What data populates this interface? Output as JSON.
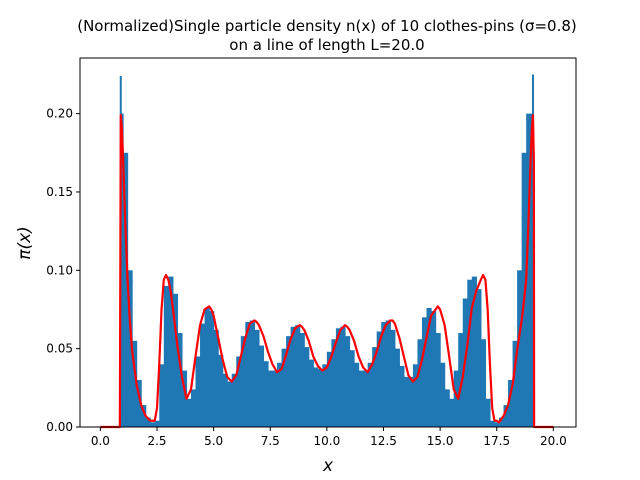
{
  "chart_data": {
    "type": "area",
    "title_line1": "(Normalized)Single particle density n(x) of 10 clothes-pins (σ=0.8)",
    "title_line2": "on a line of length L=20.0",
    "xlabel": "x",
    "ylabel": "π(x)",
    "xlim": [
      -0.9,
      21.0
    ],
    "ylim": [
      0.0,
      0.2355
    ],
    "xticks": [
      0.0,
      2.5,
      5.0,
      7.5,
      10.0,
      12.5,
      15.0,
      17.5,
      20.0
    ],
    "xtick_labels": [
      "0.0",
      "2.5",
      "5.0",
      "7.5",
      "10.0",
      "12.5",
      "15.0",
      "17.5",
      "20.0"
    ],
    "yticks": [
      0.0,
      0.05,
      0.1,
      0.15,
      0.2
    ],
    "ytick_labels": [
      "0.00",
      "0.05",
      "0.10",
      "0.15",
      "0.20"
    ],
    "grid": false,
    "series": [
      {
        "kind": "histogram",
        "color": "#1f77b4",
        "edge_spikes": [
          [
            0.9,
            0.224
          ],
          [
            19.1,
            0.225
          ]
        ],
        "x": [
          0.9,
          1.0,
          1.2,
          1.4,
          1.6,
          1.8,
          2.0,
          2.2,
          2.4,
          2.6,
          2.8,
          3.0,
          3.2,
          3.4,
          3.6,
          3.8,
          4.0,
          4.2,
          4.4,
          4.6,
          4.8,
          5.0,
          5.2,
          5.4,
          5.6,
          5.8,
          6.0,
          6.2,
          6.4,
          6.6,
          6.8,
          7.0,
          7.2,
          7.4,
          7.6,
          7.8,
          8.0,
          8.2,
          8.4,
          8.6,
          8.8,
          9.0,
          9.2,
          9.4,
          9.6,
          9.8,
          10.0,
          10.2,
          10.4,
          10.6,
          10.8,
          11.0,
          11.2,
          11.4,
          11.6,
          11.8,
          12.0,
          12.2,
          12.4,
          12.6,
          12.8,
          13.0,
          13.2,
          13.4,
          13.6,
          13.8,
          14.0,
          14.2,
          14.4,
          14.6,
          14.8,
          15.0,
          15.2,
          15.4,
          15.6,
          15.8,
          16.0,
          16.2,
          16.4,
          16.6,
          16.8,
          17.0,
          17.2,
          17.4,
          17.6,
          17.8,
          18.0,
          18.2,
          18.4,
          18.6,
          18.8,
          19.0,
          19.1
        ],
        "y": [
          0.2,
          0.175,
          0.1,
          0.055,
          0.03,
          0.014,
          0.006,
          0.003,
          0.004,
          0.04,
          0.09,
          0.096,
          0.085,
          0.06,
          0.036,
          0.018,
          0.024,
          0.045,
          0.066,
          0.076,
          0.074,
          0.062,
          0.046,
          0.034,
          0.029,
          0.034,
          0.045,
          0.058,
          0.067,
          0.068,
          0.062,
          0.052,
          0.042,
          0.036,
          0.036,
          0.041,
          0.05,
          0.058,
          0.064,
          0.065,
          0.06,
          0.051,
          0.043,
          0.038,
          0.037,
          0.04,
          0.048,
          0.056,
          0.063,
          0.064,
          0.058,
          0.049,
          0.041,
          0.036,
          0.036,
          0.041,
          0.051,
          0.061,
          0.067,
          0.068,
          0.062,
          0.05,
          0.039,
          0.032,
          0.032,
          0.04,
          0.056,
          0.07,
          0.076,
          0.074,
          0.06,
          0.041,
          0.024,
          0.018,
          0.036,
          0.06,
          0.082,
          0.094,
          0.096,
          0.088,
          0.056,
          0.018,
          0.004,
          0.003,
          0.006,
          0.014,
          0.03,
          0.055,
          0.1,
          0.175,
          0.2,
          0.2,
          0.2
        ]
      },
      {
        "kind": "line",
        "color": "#ff0000",
        "x": [
          0.0,
          0.85,
          0.86,
          0.9,
          0.95,
          1.0,
          1.1,
          1.2,
          1.3,
          1.4,
          1.6,
          1.8,
          2.0,
          2.2,
          2.4,
          2.5,
          2.6,
          2.7,
          2.8,
          2.9,
          3.0,
          3.1,
          3.2,
          3.4,
          3.6,
          3.8,
          4.0,
          4.2,
          4.4,
          4.6,
          4.8,
          4.9,
          5.0,
          5.2,
          5.4,
          5.6,
          5.8,
          6.0,
          6.2,
          6.4,
          6.6,
          6.8,
          6.9,
          7.0,
          7.2,
          7.4,
          7.6,
          7.8,
          8.0,
          8.2,
          8.4,
          8.6,
          8.8,
          8.9,
          9.0,
          9.2,
          9.4,
          9.6,
          9.8,
          10.0,
          10.2,
          10.4,
          10.6,
          10.8,
          10.9,
          11.0,
          11.2,
          11.4,
          11.6,
          11.8,
          12.0,
          12.2,
          12.4,
          12.6,
          12.8,
          12.9,
          13.0,
          13.2,
          13.4,
          13.6,
          13.8,
          14.0,
          14.2,
          14.4,
          14.6,
          14.8,
          14.9,
          15.0,
          15.2,
          15.4,
          15.6,
          15.8,
          16.0,
          16.2,
          16.4,
          16.6,
          16.8,
          16.9,
          17.0,
          17.1,
          17.2,
          17.3,
          17.4,
          17.5,
          17.6,
          17.8,
          18.0,
          18.2,
          18.4,
          18.6,
          18.7,
          18.8,
          18.9,
          19.0,
          19.05,
          19.1,
          19.14,
          19.15,
          20.0
        ],
        "y": [
          0.0,
          0.0,
          0.0,
          0.199,
          0.19,
          0.172,
          0.13,
          0.094,
          0.068,
          0.049,
          0.027,
          0.014,
          0.007,
          0.004,
          0.004,
          0.012,
          0.04,
          0.075,
          0.094,
          0.097,
          0.094,
          0.087,
          0.076,
          0.052,
          0.032,
          0.018,
          0.024,
          0.045,
          0.065,
          0.075,
          0.077,
          0.075,
          0.071,
          0.057,
          0.043,
          0.032,
          0.029,
          0.033,
          0.045,
          0.057,
          0.066,
          0.068,
          0.067,
          0.065,
          0.058,
          0.048,
          0.04,
          0.035,
          0.037,
          0.046,
          0.056,
          0.063,
          0.065,
          0.064,
          0.062,
          0.055,
          0.045,
          0.039,
          0.036,
          0.038,
          0.045,
          0.054,
          0.062,
          0.065,
          0.064,
          0.062,
          0.055,
          0.045,
          0.038,
          0.035,
          0.04,
          0.048,
          0.058,
          0.065,
          0.068,
          0.068,
          0.066,
          0.057,
          0.045,
          0.033,
          0.029,
          0.032,
          0.043,
          0.057,
          0.071,
          0.075,
          0.077,
          0.075,
          0.065,
          0.045,
          0.024,
          0.018,
          0.032,
          0.052,
          0.076,
          0.087,
          0.094,
          0.097,
          0.094,
          0.075,
          0.04,
          0.012,
          0.004,
          0.004,
          0.003,
          0.007,
          0.014,
          0.027,
          0.049,
          0.068,
          0.08,
          0.094,
          0.13,
          0.172,
          0.19,
          0.199,
          0.17,
          0.0,
          0.0
        ]
      }
    ]
  }
}
